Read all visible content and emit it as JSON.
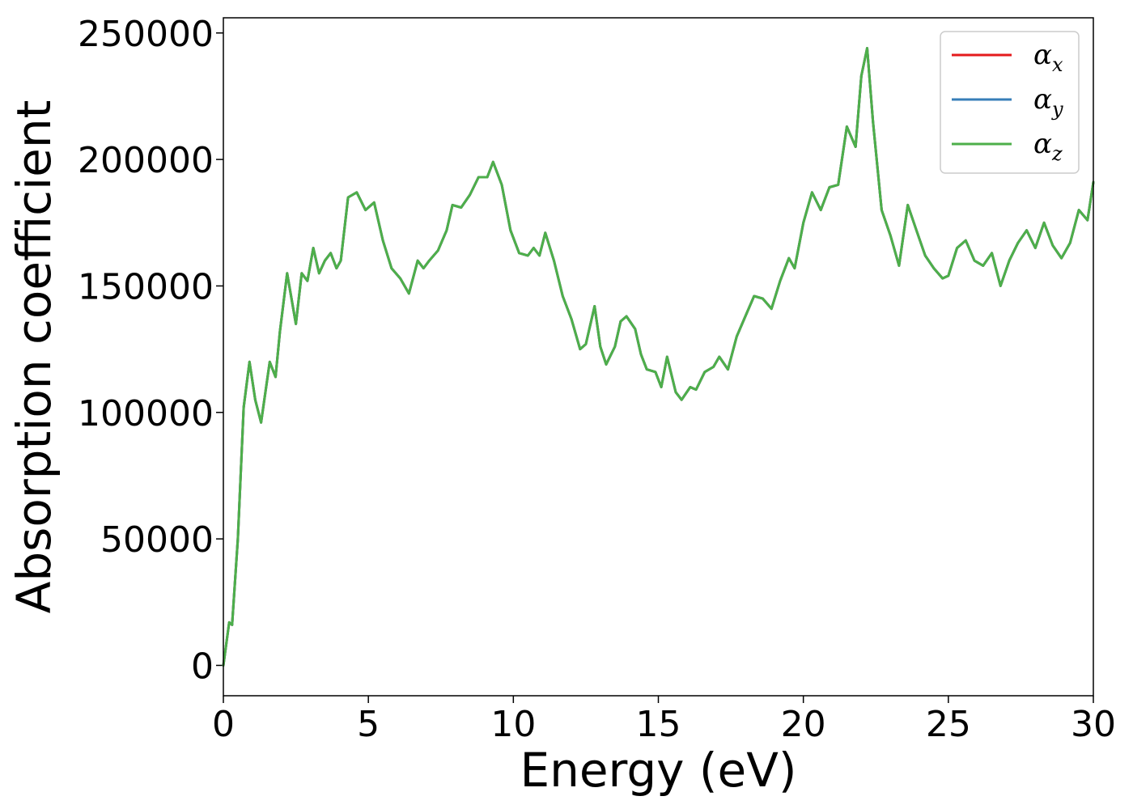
{
  "chart_data": {
    "type": "line",
    "title": "",
    "xlabel": "Energy (eV)",
    "ylabel": "Absorption coefficient",
    "xlim": [
      0,
      30
    ],
    "ylim": [
      -12000,
      256000
    ],
    "xticks": [
      0,
      5,
      10,
      15,
      20,
      25,
      30
    ],
    "yticks": [
      0,
      50000,
      100000,
      150000,
      200000,
      250000
    ],
    "grid": false,
    "legend_position": "top-right",
    "series": [
      {
        "name": "α",
        "subscript": "x",
        "color": "#e41a1c"
      },
      {
        "name": "α",
        "subscript": "y",
        "color": "#377eb8"
      },
      {
        "name": "α",
        "subscript": "z",
        "color": "#4daf4a"
      }
    ],
    "x": [
      0.0,
      0.2,
      0.3,
      0.5,
      0.7,
      0.9,
      1.1,
      1.3,
      1.6,
      1.8,
      1.95,
      2.2,
      2.5,
      2.7,
      2.9,
      3.1,
      3.3,
      3.5,
      3.7,
      3.9,
      4.05,
      4.3,
      4.6,
      4.9,
      5.2,
      5.5,
      5.8,
      6.1,
      6.4,
      6.7,
      6.9,
      7.1,
      7.4,
      7.7,
      7.9,
      8.2,
      8.5,
      8.8,
      9.1,
      9.3,
      9.6,
      9.9,
      10.2,
      10.5,
      10.7,
      10.9,
      11.1,
      11.4,
      11.7,
      12.0,
      12.3,
      12.5,
      12.8,
      13.0,
      13.2,
      13.5,
      13.7,
      13.9,
      14.2,
      14.4,
      14.6,
      14.9,
      15.1,
      15.3,
      15.6,
      15.8,
      16.1,
      16.3,
      16.6,
      16.9,
      17.1,
      17.4,
      17.7,
      18.0,
      18.3,
      18.6,
      18.9,
      19.2,
      19.5,
      19.7,
      20.0,
      20.3,
      20.6,
      20.9,
      21.2,
      21.5,
      21.8,
      22.0,
      22.2,
      22.4,
      22.7,
      23.0,
      23.3,
      23.6,
      23.9,
      24.2,
      24.5,
      24.8,
      25.0,
      25.3,
      25.6,
      25.9,
      26.2,
      26.5,
      26.8,
      27.1,
      27.4,
      27.7,
      28.0,
      28.3,
      28.6,
      28.9,
      29.2,
      29.5,
      29.8,
      30.0
    ],
    "values": [
      0,
      17000,
      16000,
      50000,
      102000,
      120000,
      105000,
      96000,
      120000,
      114000,
      132000,
      155000,
      135000,
      155000,
      152000,
      165000,
      155000,
      160000,
      163000,
      157000,
      160000,
      185000,
      187000,
      180000,
      183000,
      168000,
      157000,
      153000,
      147000,
      160000,
      157000,
      160000,
      164000,
      172000,
      182000,
      181000,
      186000,
      193000,
      193000,
      199000,
      190000,
      172000,
      163000,
      162000,
      165000,
      162000,
      171000,
      160000,
      146000,
      137000,
      125000,
      127000,
      142000,
      126000,
      119000,
      126000,
      136000,
      138000,
      133000,
      123000,
      117000,
      116000,
      110000,
      122000,
      108000,
      105000,
      110000,
      109000,
      116000,
      118000,
      122000,
      117000,
      130000,
      138000,
      146000,
      145000,
      141000,
      152000,
      161000,
      157000,
      175000,
      187000,
      180000,
      189000,
      190000,
      213000,
      205000,
      233000,
      244000,
      215000,
      180000,
      170000,
      158000,
      182000,
      172000,
      162000,
      157000,
      153000,
      154000,
      165000,
      168000,
      160000,
      158000,
      163000,
      150000,
      160000,
      167000,
      172000,
      165000,
      175000,
      166000,
      161000,
      167000,
      180000,
      176000,
      191000
    ]
  }
}
